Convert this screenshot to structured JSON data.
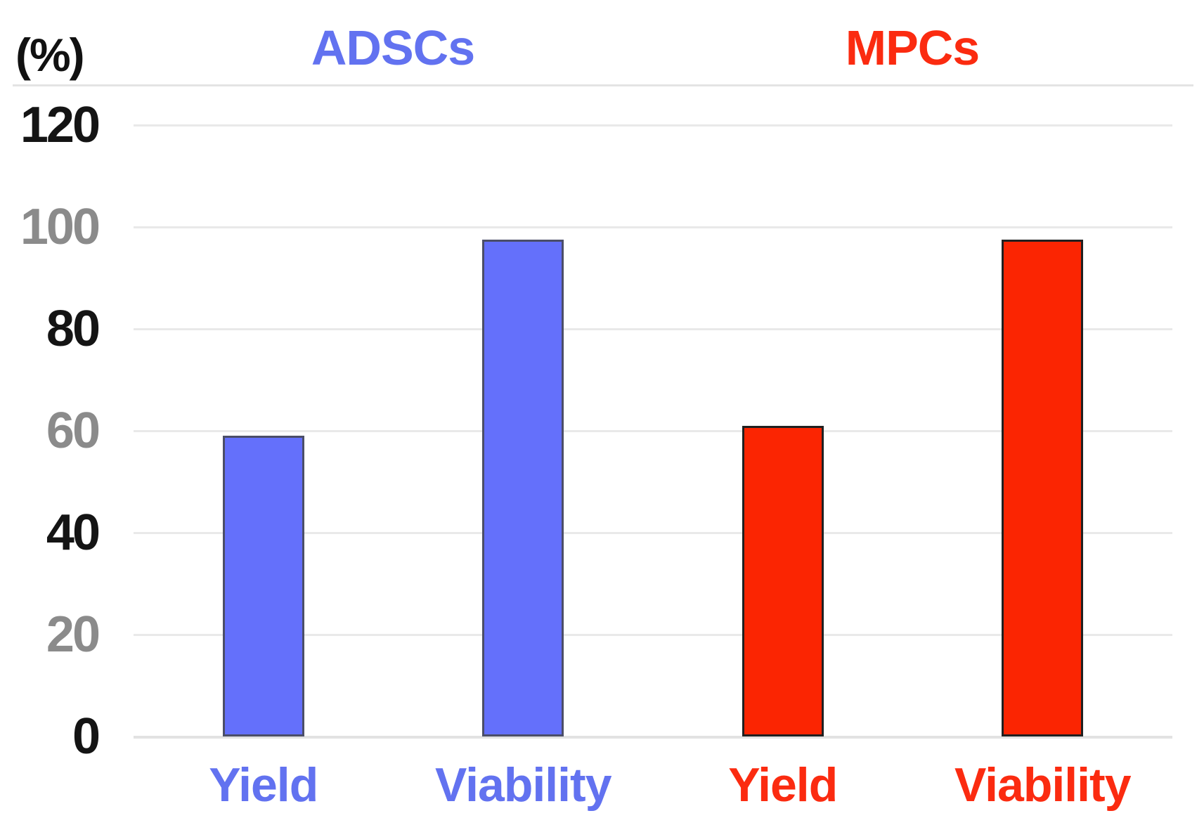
{
  "chart_data": {
    "type": "bar",
    "title": "",
    "ylabel": "(%)",
    "xlabel": "",
    "ylim": [
      0,
      120
    ],
    "yticks": [
      120,
      100,
      80,
      60,
      40,
      20,
      0
    ],
    "ytick_color_dark": "#141414",
    "ytick_color_light": "#8b8b8b",
    "grid": true,
    "legend_position": "top",
    "categories": [
      "Yield",
      "Viability"
    ],
    "groups": [
      {
        "label": "ADSCs",
        "label_color": "#6272f0",
        "bar_fill": "#6470fb",
        "bar_border": "#4b4e68",
        "bars": [
          {
            "category": "Yield",
            "value": 59
          },
          {
            "category": "Viability",
            "value": 97.5
          }
        ]
      },
      {
        "label": "MPCs",
        "label_color": "#fb2b10",
        "bar_fill": "#fb2502",
        "bar_border": "#202020",
        "bars": [
          {
            "category": "Yield",
            "value": 61
          },
          {
            "category": "Viability",
            "value": 97.5
          }
        ]
      }
    ]
  }
}
